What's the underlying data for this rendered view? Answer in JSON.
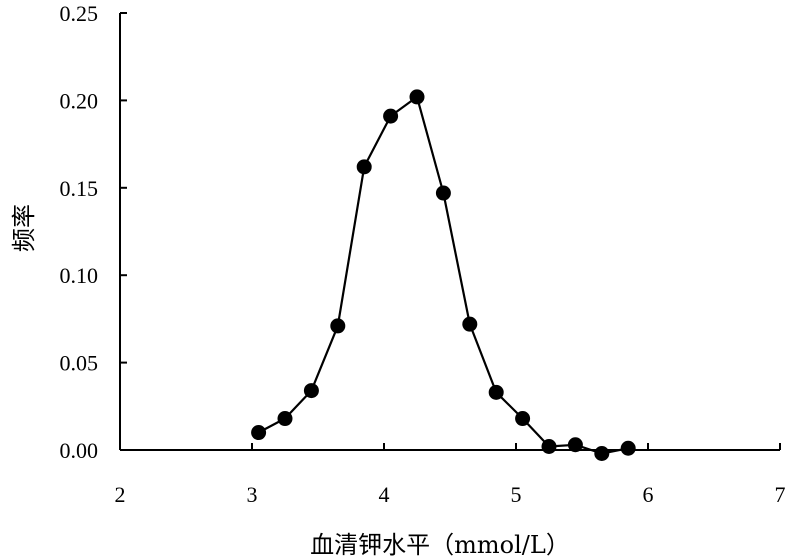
{
  "chart_data": {
    "type": "line",
    "title": "",
    "xlabel": "血清钾水平（mmol/L）",
    "ylabel": "频率",
    "xlim": [
      2,
      7
    ],
    "ylim": [
      0,
      0.25
    ],
    "xticks": [
      "2",
      "3",
      "4",
      "5",
      "6",
      "7"
    ],
    "yticks": [
      "0.00",
      "0.05",
      "0.10",
      "0.15",
      "0.20",
      "0.25"
    ],
    "grid": false,
    "legend": "none",
    "series": [
      {
        "color": "#000000",
        "marker": "filled-circle",
        "x": [
          3.05,
          3.25,
          3.45,
          3.65,
          3.85,
          4.05,
          4.25,
          4.45,
          4.65,
          4.85,
          5.05,
          5.25,
          5.45,
          5.65,
          5.85
        ],
        "y": [
          0.01,
          0.018,
          0.034,
          0.071,
          0.162,
          0.191,
          0.202,
          0.147,
          0.072,
          0.033,
          0.018,
          0.002,
          0.003,
          -0.002,
          0.001
        ]
      }
    ]
  }
}
